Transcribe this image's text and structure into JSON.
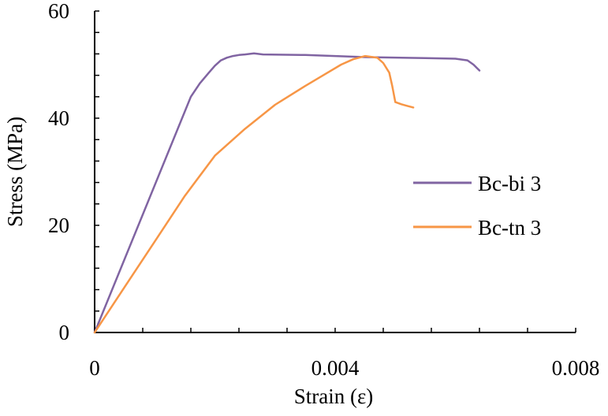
{
  "chart_data": {
    "type": "line",
    "xlabel": "Strain (ε)",
    "ylabel": "Stress (MPa)",
    "xlim": [
      0,
      0.008
    ],
    "ylim": [
      0,
      60
    ],
    "xticks": [
      0,
      0.004,
      0.008
    ],
    "xtick_labels": [
      "0",
      "0.004",
      "0.008"
    ],
    "yticks": [
      0,
      20,
      40,
      60
    ],
    "ytick_labels": [
      "0",
      "20",
      "40",
      "60"
    ],
    "x_minor_step": 0.0008,
    "y_minor_step": 4,
    "grid": false,
    "legend_position": "right",
    "series": [
      {
        "name": "Bc-bi 3",
        "color": "#8064a2",
        "x": [
          0,
          0.0016,
          0.00175,
          0.0019,
          0.002,
          0.0021,
          0.0022,
          0.0023,
          0.0024,
          0.0025,
          0.00265,
          0.0028,
          0.0035,
          0.0045,
          0.0055,
          0.006,
          0.0062,
          0.0063,
          0.0064
        ],
        "y": [
          0,
          44.0,
          46.5,
          48.5,
          49.8,
          50.8,
          51.3,
          51.6,
          51.8,
          51.9,
          52.1,
          51.9,
          51.8,
          51.4,
          51.2,
          51.1,
          50.8,
          50.0,
          48.9
        ]
      },
      {
        "name": "Bc-tn 3",
        "color": "#f79646",
        "x": [
          0,
          0.0005,
          0.001,
          0.0015,
          0.002,
          0.0025,
          0.003,
          0.0035,
          0.0038,
          0.0041,
          0.0043,
          0.0045,
          0.0047,
          0.0048,
          0.0049,
          0.00495,
          0.005,
          0.0051,
          0.0052,
          0.0053
        ],
        "y": [
          0,
          8.5,
          17.0,
          25.5,
          33.0,
          38.0,
          42.5,
          46.0,
          48.0,
          50.0,
          51.0,
          51.6,
          51.3,
          50.3,
          48.5,
          46.0,
          43.0,
          42.6,
          42.3,
          42.0
        ]
      }
    ]
  }
}
